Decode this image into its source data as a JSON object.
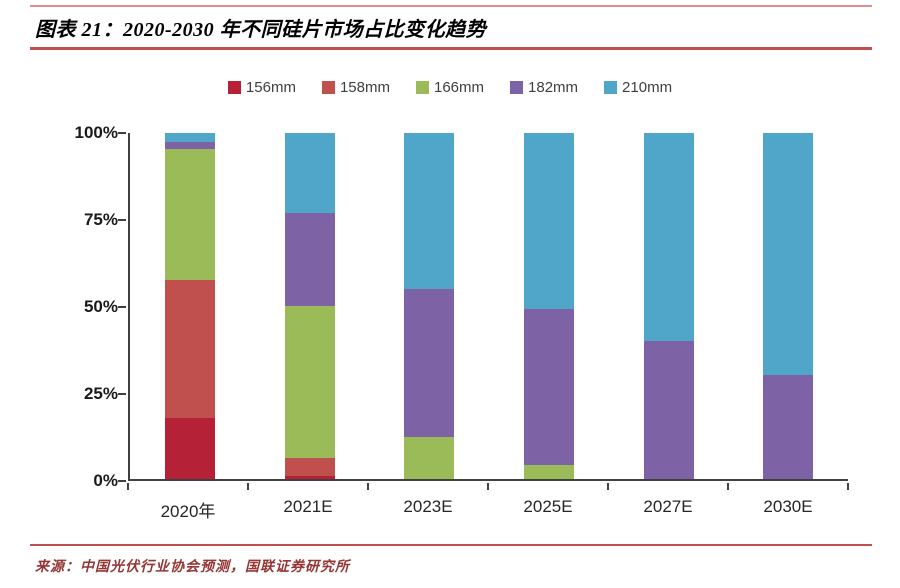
{
  "page": {
    "title": "图表 21：2020-2030 年不同硅片市场占比变化趋势",
    "source": "来源：中国光伏行业协会预测，国联证券研究所"
  },
  "colors": {
    "rule_top": "#dd8f8f",
    "rule_mid": "#c0504d",
    "rule_bottom": "#c0504d",
    "axis": "#404040",
    "source_text": "#943634"
  },
  "chart_data": {
    "type": "bar",
    "stacked": true,
    "title": "2020-2030 年不同硅片市场占比变化趋势",
    "xlabel": "",
    "ylabel": "",
    "ylim": [
      0,
      100
    ],
    "grid": false,
    "legend_position": "top",
    "y_ticks": [
      {
        "value": 0,
        "label": "0%"
      },
      {
        "value": 25,
        "label": "25%"
      },
      {
        "value": 50,
        "label": "50%"
      },
      {
        "value": 75,
        "label": "75%"
      },
      {
        "value": 100,
        "label": "100%"
      }
    ],
    "categories": [
      "2020年",
      "2021E",
      "2023E",
      "2025E",
      "2027E",
      "2030E"
    ],
    "series": [
      {
        "name": "156mm",
        "color": "#b52136",
        "values": [
          17.5,
          1,
          0,
          0,
          0,
          0
        ]
      },
      {
        "name": "158mm",
        "color": "#c0504d",
        "values": [
          40,
          5,
          0,
          0,
          0,
          0
        ]
      },
      {
        "name": "166mm",
        "color": "#9bbb59",
        "values": [
          38,
          44,
          12,
          4,
          0,
          0
        ]
      },
      {
        "name": "182mm",
        "color": "#7d63a5",
        "values": [
          2,
          27,
          43,
          45,
          40,
          30
        ]
      },
      {
        "name": "210mm",
        "color": "#4fa6c8",
        "values": [
          2.5,
          23,
          45,
          51,
          60,
          70
        ]
      }
    ]
  }
}
